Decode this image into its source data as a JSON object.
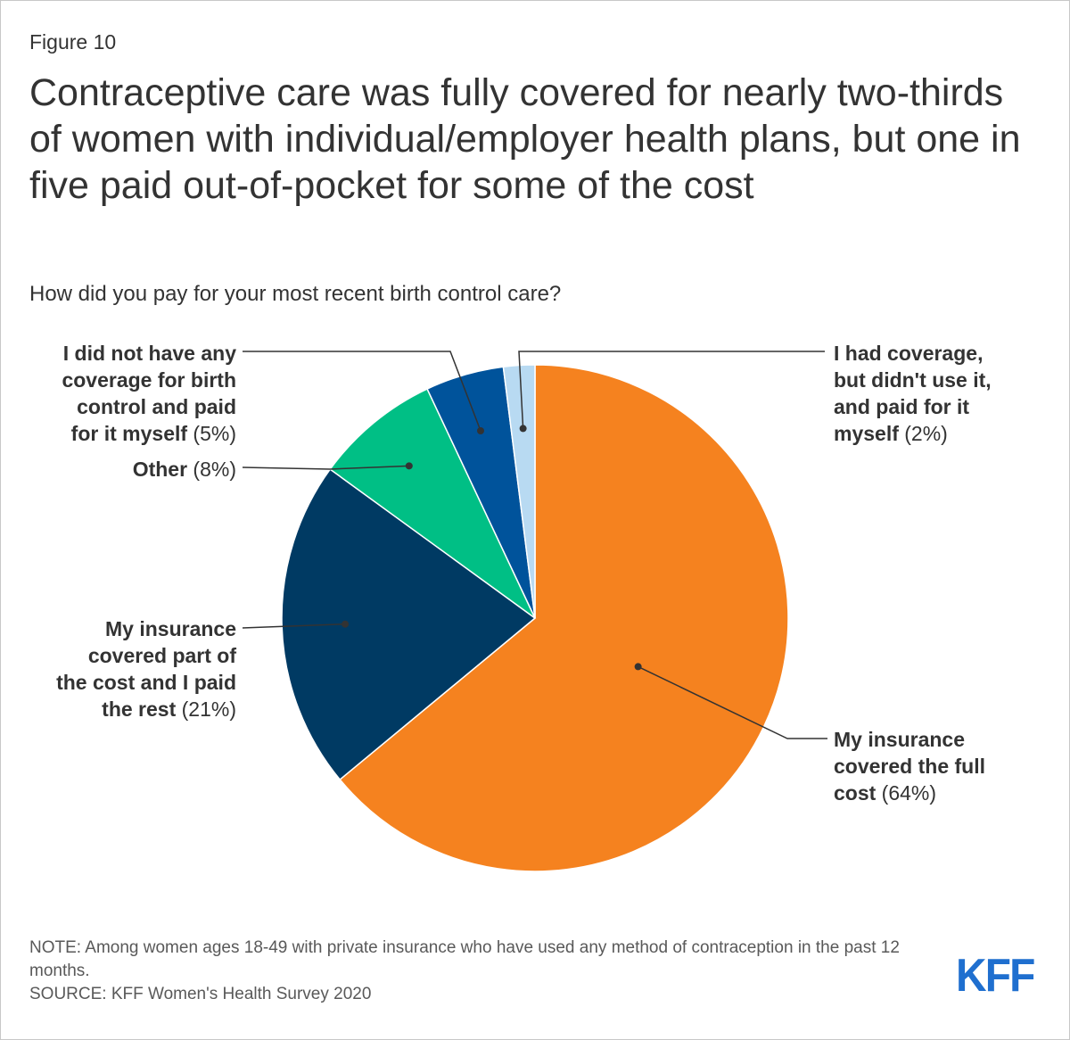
{
  "figure_label": "Figure 10",
  "title": "Contraceptive care was fully covered for nearly two-thirds of women with individual/employer health plans, but one in five paid out-of-pocket for some of the cost",
  "subtitle": "How did you pay for your most recent birth control care?",
  "chart_data": {
    "type": "pie",
    "question": "How did you pay for your most recent birth control care?",
    "slices": [
      {
        "label": "My insurance covered the full cost",
        "value": 64,
        "display": "(64%)",
        "color": "#f5821f"
      },
      {
        "label": "My insurance covered part of the cost and I paid the rest",
        "value": 21,
        "display": "(21%)",
        "color": "#003a63"
      },
      {
        "label": "Other",
        "value": 8,
        "display": "(8%)",
        "color": "#00bf85"
      },
      {
        "label": "I did not have any coverage for birth control and paid for it myself",
        "value": 5,
        "display": "(5%)",
        "color": "#00539b"
      },
      {
        "label": "I had coverage, but didn't use it, and paid for it myself",
        "value": 2,
        "display": "(2%)",
        "color": "#b8daf2"
      }
    ],
    "label_lines": [
      [
        "My insurance",
        "covered the full",
        "cost"
      ],
      [
        "My insurance",
        "covered part of",
        "the cost and I paid",
        "the rest"
      ],
      [
        "Other"
      ],
      [
        "I did not have any",
        "coverage for birth",
        "control and paid",
        "for it myself"
      ],
      [
        "I had coverage,",
        "but didn't use it,",
        "and paid for it",
        "myself"
      ]
    ]
  },
  "notes": {
    "note": "NOTE: Among women ages 18-49 with private insurance who have used any method of contraception in the past 12 months.",
    "source": "SOURCE: KFF Women's Health Survey 2020"
  },
  "logo": "KFF"
}
